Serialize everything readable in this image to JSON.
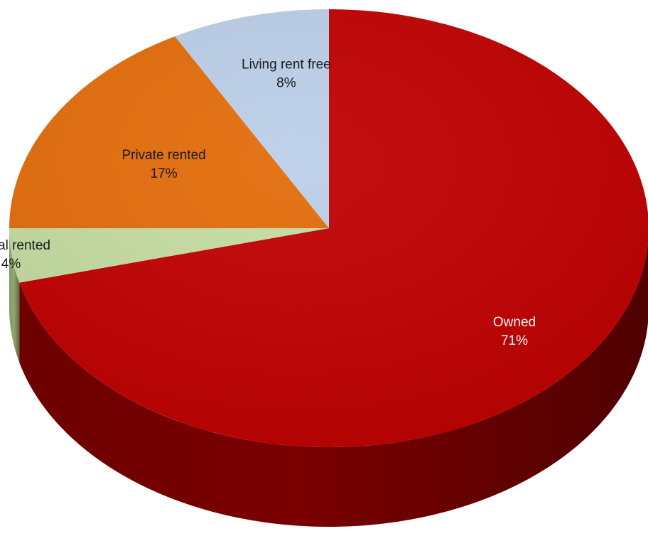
{
  "chart_data": {
    "type": "pie",
    "style": "3d",
    "title": "",
    "start_angle_deg": 0,
    "direction": "clockwise",
    "slices": [
      {
        "label": "Owned",
        "value": 71,
        "value_label": "71%",
        "color": "#C00000",
        "side_color": "#7A0000"
      },
      {
        "label": "Social rented",
        "value": 4,
        "value_label": "4%",
        "color": "#C5DCA2",
        "side_color": "#8FA870"
      },
      {
        "label": "Private rented",
        "value": 17,
        "value_label": "17%",
        "color": "#E46C0A",
        "side_color": "#A24C06"
      },
      {
        "label": "Living rent free",
        "value": 8,
        "value_label": "8%",
        "color": "#BBCFE9",
        "side_color": "#8798B0"
      }
    ]
  }
}
